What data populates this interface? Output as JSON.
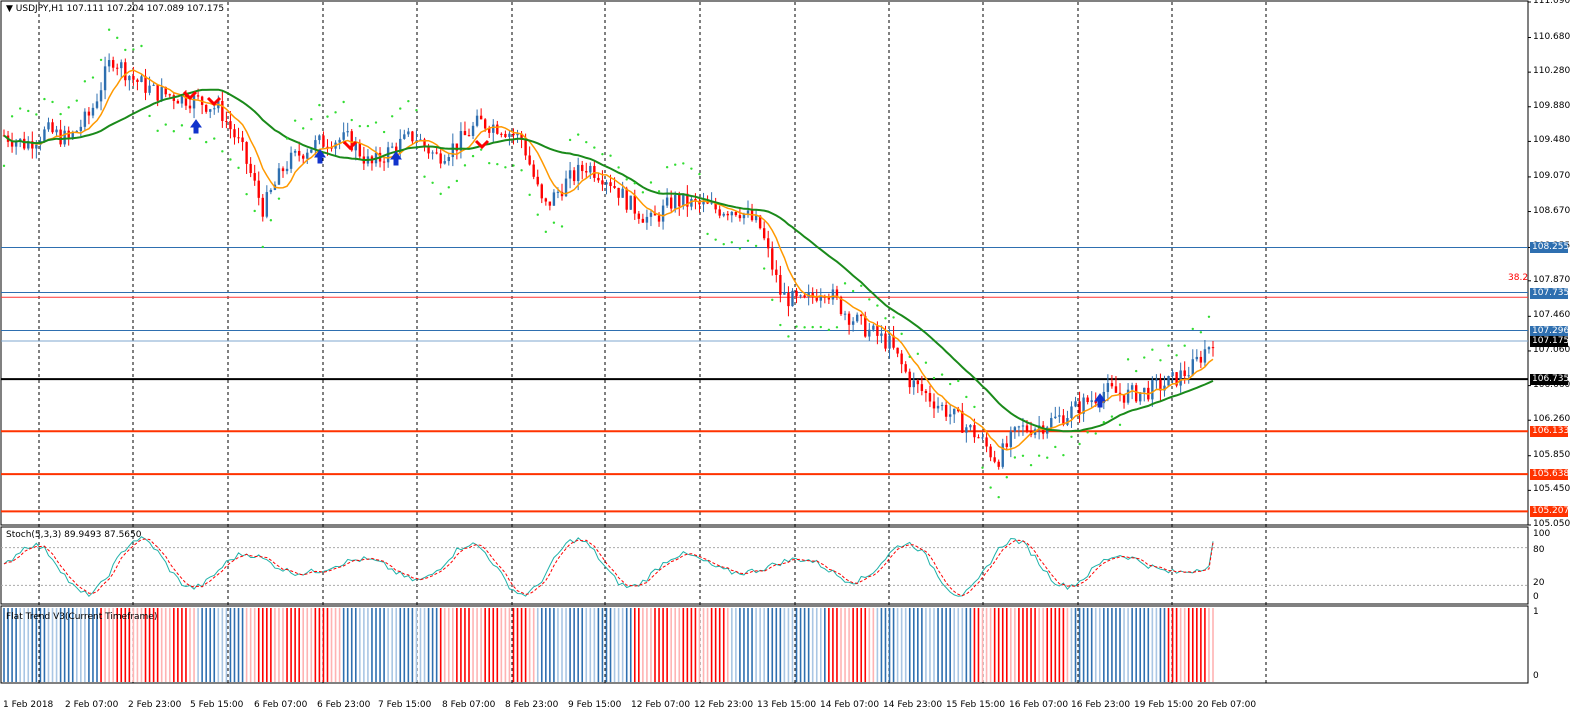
{
  "header": {
    "symbol": "USDJPY,H1",
    "ohlc": "107.111 107.204 107.089 107.175"
  },
  "price_axis": [
    "111.090",
    "110.680",
    "110.280",
    "109.880",
    "109.480",
    "109.070",
    "108.670",
    "108.255",
    "107.870",
    "107.460",
    "107.060",
    "106.660",
    "106.260",
    "105.850",
    "105.450",
    "105.050"
  ],
  "price_tags": [
    {
      "value": "108.255",
      "color": "#2e6fb0"
    },
    {
      "value": "107.735",
      "color": "#2e6fb0"
    },
    {
      "value": "107.296",
      "color": "#2e6fb0"
    },
    {
      "value": "107.175",
      "color": "#000000"
    },
    {
      "value": "106.735",
      "color": "#000000"
    },
    {
      "value": "106.133",
      "color": "#ff3300"
    },
    {
      "value": "105.638",
      "color": "#ff3300"
    },
    {
      "value": "105.207",
      "color": "#ff3300"
    }
  ],
  "fib_label": "38.2",
  "stoch": {
    "title": "Stoch(5,3,3) 89.9493 87.5650",
    "axis": [
      "100",
      "80",
      "20",
      "0"
    ]
  },
  "flat_trend": {
    "title": "Flat Trend V3(Current Timeframe)",
    "axis": [
      "1",
      "0"
    ]
  },
  "time_axis": [
    "1 Feb 2018",
    "2 Feb 07:00",
    "2 Feb 23:00",
    "5 Feb 15:00",
    "6 Feb 07:00",
    "6 Feb 23:00",
    "7 Feb 15:00",
    "8 Feb 07:00",
    "8 Feb 23:00",
    "9 Feb 15:00",
    "12 Feb 07:00",
    "12 Feb 23:00",
    "13 Feb 15:00",
    "14 Feb 07:00",
    "14 Feb 23:00",
    "15 Feb 15:00",
    "16 Feb 07:00",
    "16 Feb 23:00",
    "19 Feb 15:00",
    "20 Feb 07:00"
  ],
  "chart_data": {
    "type": "candlestick",
    "symbol": "USDJPY",
    "timeframe": "H1",
    "ylim": [
      105.05,
      111.09
    ],
    "close_path": [
      109.55,
      109.45,
      109.6,
      109.5,
      109.8,
      110.45,
      110.2,
      110.05,
      110.0,
      109.95,
      109.85,
      109.4,
      108.7,
      109.2,
      109.4,
      109.5,
      109.5,
      109.2,
      109.4,
      109.55,
      109.3,
      109.45,
      109.7,
      109.65,
      109.5,
      108.7,
      109.0,
      109.2,
      109.05,
      108.75,
      108.55,
      108.8,
      108.75,
      108.7,
      108.7,
      108.5,
      107.7,
      107.6,
      107.8,
      107.5,
      107.3,
      107.15,
      106.7,
      106.5,
      106.3,
      106.1,
      105.8,
      106.15,
      106.2,
      106.3,
      106.45,
      106.6,
      106.55,
      106.6,
      106.7,
      106.85,
      107.2
    ],
    "ma_fast_last": 106.85,
    "ma_slow_last": 106.66,
    "horizontal_levels": [
      108.255,
      107.735,
      107.68,
      107.296,
      107.175,
      106.735,
      106.133,
      105.638,
      105.207
    ],
    "stoch_last": [
      89.9493,
      87.565
    ]
  }
}
